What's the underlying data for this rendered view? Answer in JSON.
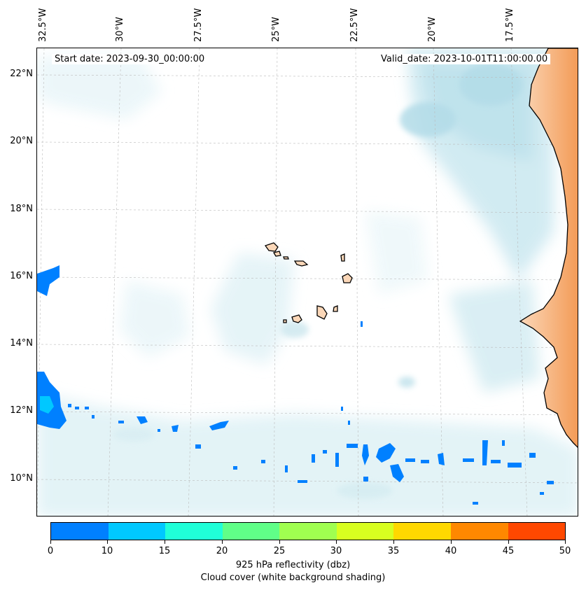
{
  "map": {
    "annotations": {
      "start_date": "Start date: 2023-09-30_00:00:00",
      "valid_date": "Valid_date: 2023-10-01T11:00:00.00"
    },
    "longitude_labels": [
      "32.5°W",
      "30°W",
      "27.5°W",
      "25°W",
      "22.5°W",
      "20°W",
      "17.5°W"
    ],
    "latitude_labels": [
      "22°N",
      "20°N",
      "18°N",
      "16°N",
      "14°N",
      "12°N",
      "10°N"
    ],
    "features": [
      "cloud-cover-shading",
      "reflectivity-cells",
      "cape-verde-islands",
      "west-africa-coast"
    ]
  },
  "colorbar": {
    "colors": [
      "#0080ff",
      "#00c8ff",
      "#20ffd8",
      "#60ff88",
      "#a0ff50",
      "#d8ff20",
      "#ffd800",
      "#ff8800",
      "#ff4800"
    ],
    "tick_labels": [
      "0",
      "10",
      "15",
      "20",
      "25",
      "30",
      "35",
      "40",
      "45",
      "50"
    ],
    "title_line1": "925 hPa reflectivity (dbz)",
    "title_line2": "Cloud cover (white background shading)"
  }
}
